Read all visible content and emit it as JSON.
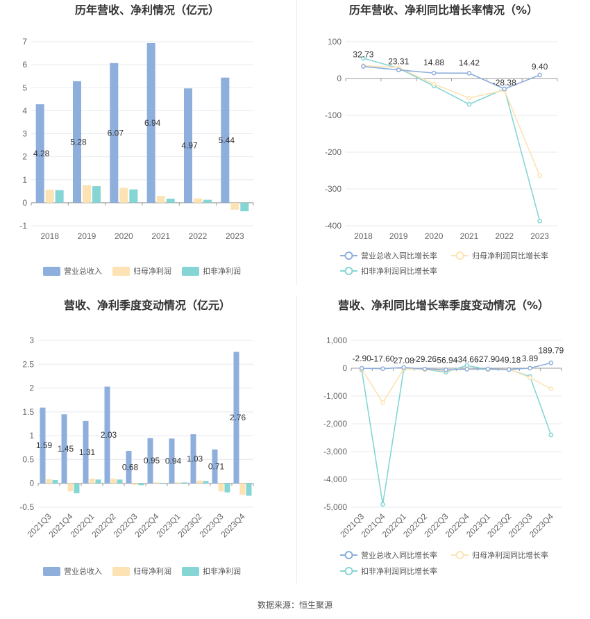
{
  "source_label": "数据来源：恒生聚源",
  "colors": {
    "revenue": "#8eaedc",
    "net_profit": "#fde3b3",
    "deducted_profit": "#86d5d5",
    "grid": "#e6e9ef",
    "axis": "#999999"
  },
  "chart_data": [
    {
      "id": "annual_values",
      "type": "bar",
      "title": "历年营收、净利情况（亿元）",
      "categories": [
        "2018",
        "2019",
        "2020",
        "2021",
        "2022",
        "2023"
      ],
      "ylim": [
        -1,
        7
      ],
      "yticks": [
        "-1",
        "0",
        "1",
        "2",
        "3",
        "4",
        "5",
        "6",
        "7"
      ],
      "grid": true,
      "legend_position": "bottom",
      "series": [
        {
          "name": "营业总收入",
          "values": [
            4.28,
            5.28,
            6.07,
            6.94,
            4.97,
            5.44
          ],
          "labels": [
            "4.28",
            "5.28",
            "6.07",
            "6.94",
            "4.97",
            "5.44"
          ]
        },
        {
          "name": "归母净利润",
          "values": [
            0.57,
            0.77,
            0.65,
            0.3,
            0.19,
            -0.3
          ]
        },
        {
          "name": "扣非净利润",
          "values": [
            0.55,
            0.72,
            0.58,
            0.18,
            0.13,
            -0.37
          ]
        }
      ]
    },
    {
      "id": "annual_growth",
      "type": "line",
      "title": "历年营收、净利同比增长率情况（%）",
      "categories": [
        "2018",
        "2019",
        "2020",
        "2021",
        "2022",
        "2023"
      ],
      "ylim": [
        -400,
        100
      ],
      "yticks": [
        "-400",
        "-300",
        "-200",
        "-100",
        "0",
        "100"
      ],
      "grid": true,
      "legend_position": "bottom",
      "series": [
        {
          "name": "营业总收入同比增长率",
          "values": [
            32.73,
            23.31,
            14.88,
            14.42,
            -28.38,
            9.4
          ],
          "labels": [
            "32.73",
            "23.31",
            "14.88",
            "14.42",
            "-28.38",
            "9.40"
          ]
        },
        {
          "name": "归母净利润同比增长率",
          "values": [
            35,
            30,
            -15,
            -53,
            -32,
            -264
          ]
        },
        {
          "name": "扣非净利润同比增长率",
          "values": [
            55,
            28,
            -20,
            -70,
            -28,
            -387
          ]
        }
      ]
    },
    {
      "id": "quarterly_values",
      "type": "bar",
      "title": "营收、净利季度变动情况（亿元）",
      "categories": [
        "2021Q3",
        "2021Q4",
        "2022Q1",
        "2022Q2",
        "2022Q3",
        "2022Q4",
        "2023Q1",
        "2023Q2",
        "2023Q3",
        "2023Q4"
      ],
      "ylim": [
        -0.5,
        3
      ],
      "yticks": [
        "-0.5",
        "0",
        "0.5",
        "1",
        "1.5",
        "2",
        "2.5",
        "3"
      ],
      "grid": true,
      "legend_position": "bottom",
      "series": [
        {
          "name": "营业总收入",
          "values": [
            1.59,
            1.45,
            1.31,
            2.03,
            0.68,
            0.95,
            0.94,
            1.03,
            0.71,
            2.76
          ],
          "labels": [
            "1.59",
            "1.45",
            "1.31",
            "2.03",
            "0.68",
            "0.95",
            "0.94",
            "1.03",
            "0.71",
            "2.76"
          ]
        },
        {
          "name": "归母净利润",
          "values": [
            0.09,
            -0.17,
            0.1,
            0.1,
            -0.03,
            0.02,
            0.02,
            0.06,
            -0.17,
            -0.24
          ]
        },
        {
          "name": "扣非净利润",
          "values": [
            0.07,
            -0.21,
            0.08,
            0.08,
            -0.04,
            0.0,
            0.02,
            0.05,
            -0.19,
            -0.26
          ]
        }
      ]
    },
    {
      "id": "quarterly_growth",
      "type": "line",
      "title": "营收、净利同比增长率季度变动情况（%）",
      "categories": [
        "2021Q3",
        "2021Q4",
        "2022Q1",
        "2022Q2",
        "2022Q3",
        "2022Q4",
        "2023Q1",
        "2023Q2",
        "2023Q3",
        "2023Q4"
      ],
      "ylim": [
        -5000,
        1000
      ],
      "yticks": [
        "-5,000",
        "-4,000",
        "-3,000",
        "-2,000",
        "-1,000",
        "0",
        "1,000"
      ],
      "grid": true,
      "legend_position": "bottom",
      "series": [
        {
          "name": "营业总收入同比增长率",
          "values": [
            -2.9,
            -17.6,
            27.08,
            -29.26,
            -56.94,
            -34.66,
            -27.9,
            -49.18,
            3.89,
            189.79
          ],
          "labels": [
            "-2.90",
            "-17.60",
            "27.08",
            "-29.26",
            "-56.94",
            "-34.66",
            "-27.90",
            "-49.18",
            "3.89",
            "189.79"
          ]
        },
        {
          "name": "归母净利润同比增长率",
          "values": [
            -30,
            -1240,
            -20,
            -50,
            -80,
            -20,
            -40,
            -30,
            -340,
            -740
          ]
        },
        {
          "name": "扣非净利润同比增长率",
          "values": [
            -60,
            -4900,
            -30,
            -40,
            -140,
            100,
            -50,
            -40,
            -300,
            -2400
          ]
        }
      ]
    }
  ]
}
